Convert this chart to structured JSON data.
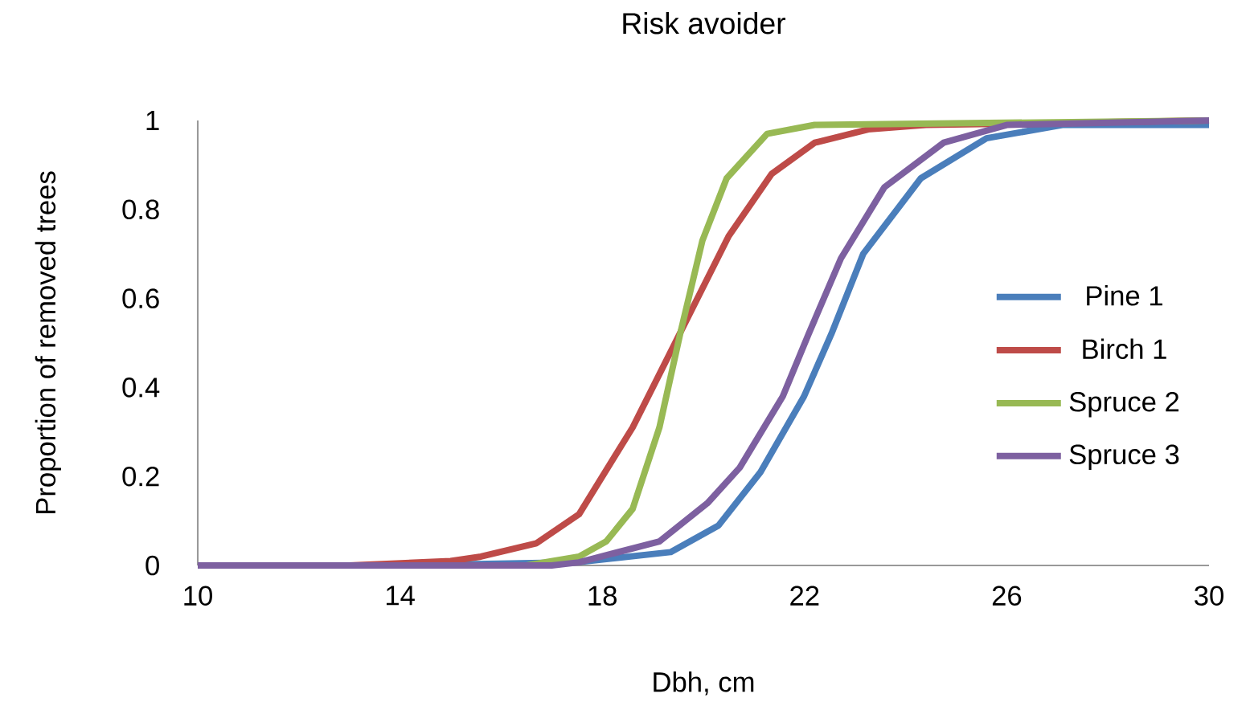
{
  "chart_data": {
    "type": "line",
    "title": "Risk avoider",
    "xlabel": "Dbh, cm",
    "ylabel": "Proportion of removed trees",
    "xlim": [
      10,
      30
    ],
    "xticks": [
      10,
      14,
      18,
      22,
      26,
      30
    ],
    "ylim": [
      0,
      1
    ],
    "yticks": [
      0,
      0.2,
      0.4,
      0.6,
      0.8,
      1
    ],
    "legend": "right",
    "grid": false,
    "marker": "none",
    "series": [
      {
        "name": "Pine 1",
        "color": "#4a7ebb",
        "x": [
          10,
          14,
          17.5,
          19.35,
          20.3,
          21.13,
          21.99,
          22.53,
          23.16,
          24.3,
          25.6,
          27.1,
          30
        ],
        "values": [
          0,
          0,
          0.007,
          0.03,
          0.09,
          0.21,
          0.38,
          0.52,
          0.7,
          0.87,
          0.96,
          0.99,
          0.99
        ]
      },
      {
        "name": "Birch 1",
        "color": "#be4b48",
        "x": [
          10,
          13,
          14,
          15,
          15.6,
          16.7,
          17.54,
          18.6,
          19.44,
          20.5,
          21.35,
          22.2,
          23.26,
          24.4,
          30
        ],
        "values": [
          0,
          0,
          0.005,
          0.01,
          0.02,
          0.05,
          0.115,
          0.31,
          0.5,
          0.74,
          0.88,
          0.95,
          0.98,
          0.99,
          1
        ]
      },
      {
        "name": "Spruce 2",
        "color": "#98b954",
        "x": [
          10,
          16.5,
          17.54,
          18.08,
          18.6,
          19.13,
          19.54,
          19.98,
          20.46,
          21.26,
          22.2,
          30
        ],
        "values": [
          0,
          0,
          0.02,
          0.054,
          0.127,
          0.31,
          0.52,
          0.73,
          0.87,
          0.97,
          0.99,
          1
        ]
      },
      {
        "name": "Spruce 3",
        "color": "#7d60a0",
        "x": [
          10,
          17,
          17.54,
          19.13,
          20.08,
          20.72,
          21.57,
          22.08,
          22.72,
          23.58,
          24.75,
          26,
          30
        ],
        "values": [
          0,
          0,
          0.007,
          0.054,
          0.14,
          0.22,
          0.38,
          0.52,
          0.69,
          0.85,
          0.95,
          0.99,
          1
        ]
      }
    ]
  }
}
